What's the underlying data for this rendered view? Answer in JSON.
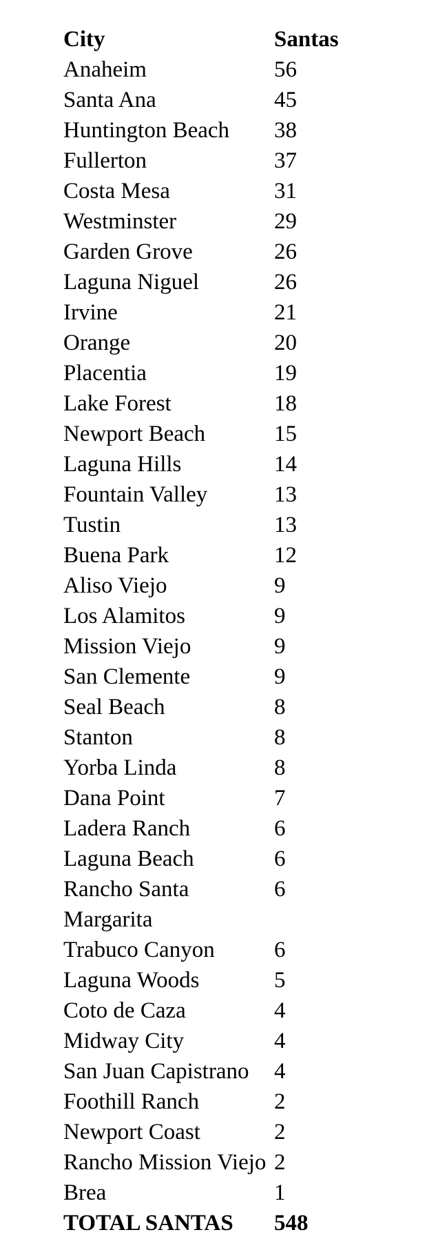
{
  "colors": {
    "background": "#ffffff",
    "text": "#000000"
  },
  "table": {
    "columns": [
      "City",
      "Santas"
    ],
    "rows": [
      {
        "city": "Anaheim",
        "santas": 56
      },
      {
        "city": "Santa Ana",
        "santas": 45
      },
      {
        "city": "Huntington Beach",
        "santas": 38
      },
      {
        "city": "Fullerton",
        "santas": 37
      },
      {
        "city": "Costa Mesa",
        "santas": 31
      },
      {
        "city": "Westminster",
        "santas": 29
      },
      {
        "city": "Garden Grove",
        "santas": 26
      },
      {
        "city": "Laguna Niguel",
        "santas": 26
      },
      {
        "city": "Irvine",
        "santas": 21
      },
      {
        "city": "Orange",
        "santas": 20
      },
      {
        "city": "Placentia",
        "santas": 19
      },
      {
        "city": "Lake Forest",
        "santas": 18
      },
      {
        "city": "Newport Beach",
        "santas": 15
      },
      {
        "city": "Laguna Hills",
        "santas": 14
      },
      {
        "city": "Fountain Valley",
        "santas": 13
      },
      {
        "city": "Tustin",
        "santas": 13
      },
      {
        "city": "Buena Park",
        "santas": 12
      },
      {
        "city": "Aliso Viejo",
        "santas": 9
      },
      {
        "city": "Los Alamitos",
        "santas": 9
      },
      {
        "city": "Mission Viejo",
        "santas": 9
      },
      {
        "city": "San Clemente",
        "santas": 9
      },
      {
        "city": "Seal Beach",
        "santas": 8
      },
      {
        "city": "Stanton",
        "santas": 8
      },
      {
        "city": "Yorba Linda",
        "santas": 8
      },
      {
        "city": "Dana Point",
        "santas": 7
      },
      {
        "city": "Ladera Ranch",
        "santas": 6
      },
      {
        "city": "Laguna Beach",
        "santas": 6
      },
      {
        "city": "Rancho Santa Margarita",
        "santas": 6
      },
      {
        "city": "Trabuco Canyon",
        "santas": 6
      },
      {
        "city": "Laguna Woods",
        "santas": 5
      },
      {
        "city": "Coto de Caza",
        "santas": 4
      },
      {
        "city": "Midway City",
        "santas": 4
      },
      {
        "city": "San Juan Capistrano",
        "santas": 4
      },
      {
        "city": "Foothill Ranch",
        "santas": 2
      },
      {
        "city": "Newport Coast",
        "santas": 2
      },
      {
        "city": "Rancho Mission Viejo",
        "santas": 2
      },
      {
        "city": "Brea",
        "santas": 1
      }
    ],
    "total": {
      "label": "TOTAL SANTAS",
      "value": 548
    }
  }
}
